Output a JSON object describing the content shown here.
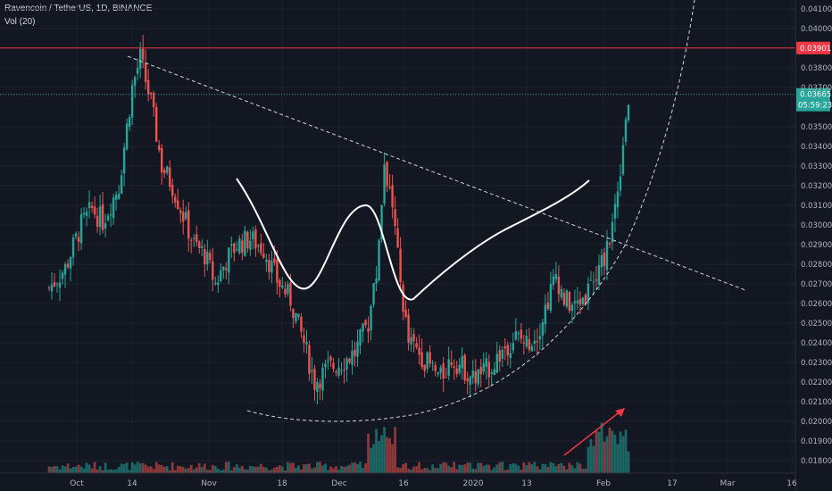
{
  "header": {
    "title": "Ravencoin / TetherUS, 1D, BINANCE",
    "volume_label": "Vol (20)"
  },
  "colors": {
    "background": "#131722",
    "up": "#26a69a",
    "down": "#ef5350",
    "resistance": "#f23645",
    "current_price": "#26a69a",
    "drawing": "#ffffff",
    "arrow": "#f23645"
  },
  "chart_data": {
    "type": "candlestick",
    "ylim": [
      0.0175,
      0.0415
    ],
    "y_ticks": [
      "0.04100",
      "0.04000",
      "0.03901",
      "0.03800",
      "0.03700",
      "0.03665",
      "0.03500",
      "0.03400",
      "0.03300",
      "0.03200",
      "0.03100",
      "0.03000",
      "0.02900",
      "0.02800",
      "0.02700",
      "0.02600",
      "0.02500",
      "0.02400",
      "0.02300",
      "0.02200",
      "0.02100",
      "0.02000",
      "0.01900",
      "0.01800"
    ],
    "x_ticks": [
      "Oct",
      "14",
      "Nov",
      "18",
      "Dec",
      "16",
      "2020",
      "13",
      "Feb",
      "17",
      "Mar",
      "16"
    ],
    "resistance": {
      "price": 0.03901,
      "label": "0.03901"
    },
    "current_price": {
      "price": 0.03665,
      "label": "0.03665",
      "countdown": "05:59:23"
    },
    "legend": "none",
    "grid": true
  }
}
